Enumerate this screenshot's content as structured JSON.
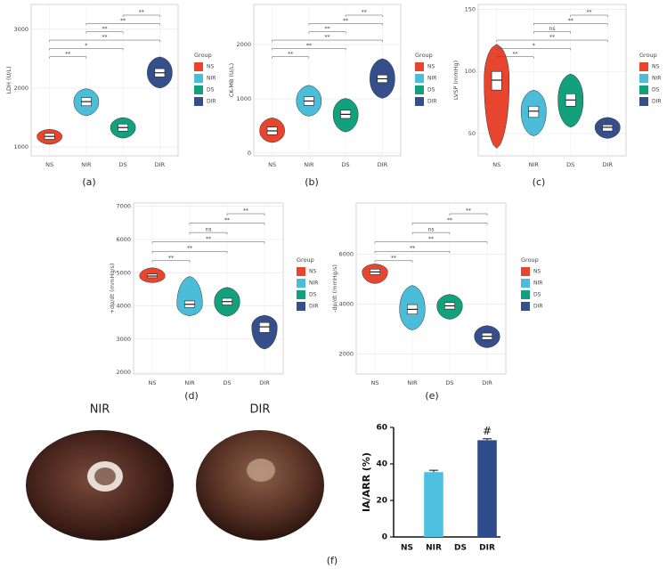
{
  "chart_data": [
    {
      "type": "violin",
      "panel_label": "(a)",
      "y_label": "LDH (U/L)",
      "legend_title": "Group",
      "categories": [
        "NS",
        "NIR",
        "DS",
        "DIR"
      ],
      "series": [
        {
          "name": "NS",
          "color": "#e8452f",
          "min": 1045,
          "q1": 1130,
          "median": 1180,
          "q3": 1230,
          "max": 1300
        },
        {
          "name": "NIR",
          "color": "#4cbdd8",
          "min": 1530,
          "q1": 1700,
          "median": 1770,
          "q3": 1840,
          "max": 1990
        },
        {
          "name": "DS",
          "color": "#12a07d",
          "min": 1150,
          "q1": 1270,
          "median": 1330,
          "q3": 1390,
          "max": 1500
        },
        {
          "name": "DIR",
          "color": "#344f8c",
          "min": 2000,
          "q1": 2190,
          "median": 2260,
          "q3": 2330,
          "max": 2530
        }
      ],
      "comparisons": [
        {
          "from": "NS",
          "to": "NIR",
          "label": "**"
        },
        {
          "from": "NS",
          "to": "DS",
          "label": "*"
        },
        {
          "from": "NS",
          "to": "DIR",
          "label": "**"
        },
        {
          "from": "NIR",
          "to": "DS",
          "label": "**"
        },
        {
          "from": "NIR",
          "to": "DIR",
          "label": "**"
        },
        {
          "from": "DS",
          "to": "DIR",
          "label": "**"
        }
      ],
      "ylim": [
        850,
        3420
      ],
      "yticks": [
        1000,
        2000,
        3000
      ],
      "grid": true
    },
    {
      "type": "violin",
      "panel_label": "(b)",
      "y_label": "CK-MB (U/L)",
      "legend_title": "Group",
      "categories": [
        "NS",
        "NIR",
        "DS",
        "DIR"
      ],
      "series": [
        {
          "name": "NS",
          "color": "#e8452f",
          "min": 195,
          "q1": 340,
          "median": 410,
          "q3": 480,
          "max": 650
        },
        {
          "name": "NIR",
          "color": "#4cbdd8",
          "min": 680,
          "q1": 880,
          "median": 960,
          "q3": 1040,
          "max": 1250
        },
        {
          "name": "DS",
          "color": "#12a07d",
          "min": 390,
          "q1": 640,
          "median": 715,
          "q3": 790,
          "max": 1010
        },
        {
          "name": "DIR",
          "color": "#344f8c",
          "min": 1010,
          "q1": 1300,
          "median": 1370,
          "q3": 1440,
          "max": 1740
        }
      ],
      "comparisons": [
        {
          "from": "NS",
          "to": "NIR",
          "label": "**"
        },
        {
          "from": "NS",
          "to": "DS",
          "label": "**"
        },
        {
          "from": "NS",
          "to": "DIR",
          "label": "**"
        },
        {
          "from": "NIR",
          "to": "DS",
          "label": "**"
        },
        {
          "from": "NIR",
          "to": "DIR",
          "label": "**"
        },
        {
          "from": "DS",
          "to": "DIR",
          "label": "**"
        }
      ],
      "ylim": [
        -50,
        2740
      ],
      "yticks": [
        0,
        1000,
        2000
      ],
      "grid": true
    },
    {
      "type": "violin",
      "panel_label": "(c)",
      "y_label": "LVSP (mmHg)",
      "legend_title": "Group",
      "categories": [
        "NS",
        "NIR",
        "DS",
        "DIR"
      ],
      "series": [
        {
          "name": "NS",
          "color": "#e8452f",
          "min": 38,
          "q1": 85,
          "median": 93,
          "q3": 100,
          "max": 122
        },
        {
          "name": "NIR",
          "color": "#4cbdd8",
          "min": 48,
          "q1": 63,
          "median": 68,
          "q3": 72,
          "max": 85
        },
        {
          "name": "DS",
          "color": "#12a07d",
          "min": 55,
          "q1": 72,
          "median": 77,
          "q3": 82,
          "max": 98
        },
        {
          "name": "DIR",
          "color": "#344f8c",
          "min": 46,
          "q1": 52,
          "median": 55,
          "q3": 57,
          "max": 63
        }
      ],
      "comparisons": [
        {
          "from": "NS",
          "to": "NIR",
          "label": "**"
        },
        {
          "from": "NS",
          "to": "DS",
          "label": "*"
        },
        {
          "from": "NS",
          "to": "DIR",
          "label": "**"
        },
        {
          "from": "NIR",
          "to": "DS",
          "label": "ns"
        },
        {
          "from": "NIR",
          "to": "DIR",
          "label": "**"
        },
        {
          "from": "DS",
          "to": "DIR",
          "label": "**"
        }
      ],
      "ylim": [
        32,
        154
      ],
      "yticks": [
        50,
        100,
        150
      ],
      "grid": true
    },
    {
      "type": "violin",
      "panel_label": "(d)",
      "y_label": "+dp/dt (mmHg/s)",
      "legend_title": "Group",
      "categories": [
        "NS",
        "NIR",
        "DS",
        "DIR"
      ],
      "series": [
        {
          "name": "NS",
          "color": "#e8452f",
          "min": 4700,
          "q1": 4850,
          "median": 4900,
          "q3": 4960,
          "max": 5150
        },
        {
          "name": "NIR",
          "color": "#4cbdd8",
          "min": 3700,
          "q1": 3950,
          "median": 4050,
          "q3": 4150,
          "max": 4890
        },
        {
          "name": "DS",
          "color": "#12a07d",
          "min": 3690,
          "q1": 4030,
          "median": 4130,
          "q3": 4230,
          "max": 4560
        },
        {
          "name": "DIR",
          "color": "#344f8c",
          "min": 2700,
          "q1": 3200,
          "median": 3370,
          "q3": 3500,
          "max": 3720
        }
      ],
      "comparisons": [
        {
          "from": "NS",
          "to": "NIR",
          "label": "**"
        },
        {
          "from": "NS",
          "to": "DS",
          "label": "**"
        },
        {
          "from": "NS",
          "to": "DIR",
          "label": "**"
        },
        {
          "from": "NIR",
          "to": "DS",
          "label": "ns"
        },
        {
          "from": "NIR",
          "to": "DIR",
          "label": "**"
        },
        {
          "from": "DS",
          "to": "DIR",
          "label": "**"
        }
      ],
      "ylim": [
        1950,
        7100
      ],
      "yticks": [
        2000,
        3000,
        4000,
        5000,
        6000,
        7000
      ],
      "grid": true
    },
    {
      "type": "violin",
      "panel_label": "(e)",
      "y_label": "-dp/dt (mmHg/s)",
      "legend_title": "Group",
      "categories": [
        "NS",
        "NIR",
        "DS",
        "DIR"
      ],
      "series": [
        {
          "name": "NS",
          "color": "#e8452f",
          "min": 4820,
          "q1": 5180,
          "median": 5290,
          "q3": 5400,
          "max": 5610
        },
        {
          "name": "NIR",
          "color": "#4cbdd8",
          "min": 2960,
          "q1": 3600,
          "median": 3790,
          "q3": 3980,
          "max": 4750
        },
        {
          "name": "DS",
          "color": "#12a07d",
          "min": 3390,
          "q1": 3800,
          "median": 3930,
          "q3": 4060,
          "max": 4390
        },
        {
          "name": "DIR",
          "color": "#344f8c",
          "min": 2250,
          "q1": 2580,
          "median": 2710,
          "q3": 2840,
          "max": 3140
        }
      ],
      "comparisons": [
        {
          "from": "NS",
          "to": "NIR",
          "label": "**"
        },
        {
          "from": "NS",
          "to": "DS",
          "label": "**"
        },
        {
          "from": "NS",
          "to": "DIR",
          "label": "**"
        },
        {
          "from": "NIR",
          "to": "DS",
          "label": "ns"
        },
        {
          "from": "NIR",
          "to": "DIR",
          "label": "**"
        },
        {
          "from": "DS",
          "to": "DIR",
          "label": "**"
        }
      ],
      "ylim": [
        1200,
        8050
      ],
      "yticks": [
        2000,
        4000,
        6000
      ],
      "grid": true
    },
    {
      "type": "bar",
      "panel_label": "(f)",
      "y_label": "IA/ARR (%)",
      "annotation": "#",
      "image_labels": [
        "NIR",
        "DIR"
      ],
      "categories": [
        "NS",
        "NIR",
        "DS",
        "DIR"
      ],
      "values": [
        0,
        35.5,
        0,
        53
      ],
      "errors": [
        0,
        1,
        0,
        0.8
      ],
      "colors": [
        "#4fc1e0",
        "#4fc1e0",
        "#2f4c8c",
        "#2f4c8c"
      ],
      "ylim": [
        0,
        60
      ],
      "yticks": [
        0,
        20,
        40,
        60
      ]
    }
  ]
}
